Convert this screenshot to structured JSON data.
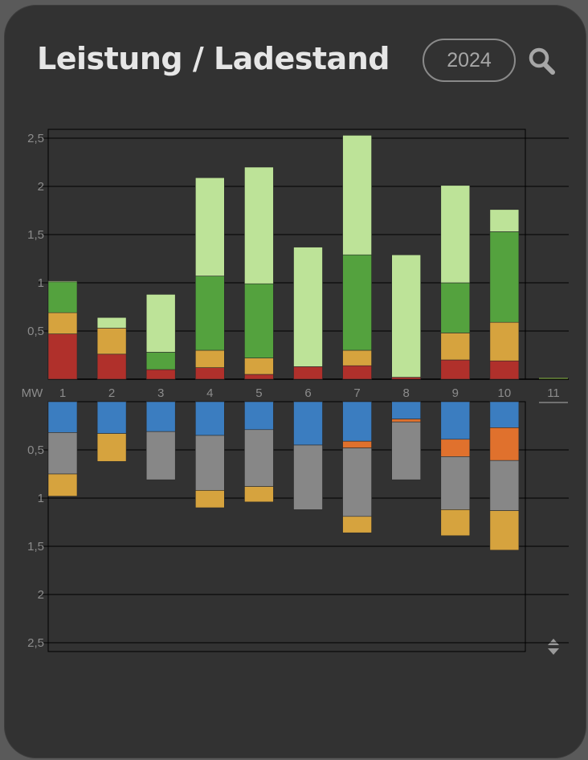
{
  "header": {
    "title": "Leistung / Ladestand",
    "year": "2024"
  },
  "icons": {
    "search": "search-icon",
    "sort": "sort-up-down-icon"
  },
  "colors": {
    "background": "#323232",
    "page_background": "#5a5a5a",
    "text": "#e6e6e6",
    "tick_text": "#8c8c8c",
    "grid": "#000000",
    "dark_red": "#b0302b",
    "yellow": "#d6a33e",
    "green": "#54a23e",
    "light_green": "#bde398",
    "blue": "#3b7dc0",
    "gray": "#878787",
    "orange": "#e0712d"
  },
  "chart_data": [
    {
      "type": "bar",
      "stacked": true,
      "unit": "MW",
      "categories": [
        "1",
        "2",
        "3",
        "4",
        "5",
        "6",
        "7",
        "8",
        "9",
        "10",
        "11"
      ],
      "yticks": [
        "2,5",
        "2",
        "1,5",
        "1",
        "0,5"
      ],
      "ylim": [
        0,
        2.5
      ],
      "grid": true,
      "series": [
        {
          "color": "#b0302b",
          "values": [
            0.47,
            0.26,
            0.1,
            0.12,
            0.05,
            0.13,
            0.14,
            0.02,
            0.2,
            0.19,
            0
          ]
        },
        {
          "color": "#d6a33e",
          "values": [
            0.22,
            0.27,
            0,
            0.18,
            0.17,
            0,
            0.16,
            0,
            0.28,
            0.4,
            0
          ]
        },
        {
          "color": "#54a23e",
          "values": [
            0.32,
            0,
            0.18,
            0.77,
            0.77,
            0,
            0.99,
            0,
            0.52,
            0.94,
            0
          ]
        },
        {
          "color": "#bde398",
          "values": [
            0.01,
            0.11,
            0.6,
            1.02,
            1.21,
            1.24,
            1.24,
            1.27,
            1.01,
            0.23,
            0
          ]
        }
      ]
    },
    {
      "type": "bar",
      "stacked": true,
      "direction": "down",
      "unit": "MW",
      "categories": [
        "1",
        "2",
        "3",
        "4",
        "5",
        "6",
        "7",
        "8",
        "9",
        "10",
        "11"
      ],
      "yticks": [
        "0,5",
        "1",
        "1,5",
        "2",
        "2,5"
      ],
      "ylim": [
        0,
        2.5
      ],
      "grid": true,
      "series": [
        {
          "color": "#3b7dc0",
          "values": [
            0.32,
            0.33,
            0.31,
            0.35,
            0.29,
            0.45,
            0.41,
            0.18,
            0.39,
            0.27,
            0
          ]
        },
        {
          "color": "#e0712d",
          "values": [
            0,
            0,
            0,
            0,
            0,
            0,
            0.07,
            0.03,
            0.18,
            0.34,
            0
          ]
        },
        {
          "color": "#878787",
          "values": [
            0.43,
            0,
            0.5,
            0.57,
            0.59,
            0.67,
            0.71,
            0.6,
            0.55,
            0.52,
            0
          ]
        },
        {
          "color": "#d6a33e",
          "values": [
            0.23,
            0.29,
            0,
            0.18,
            0.16,
            0,
            0.17,
            0,
            0.27,
            0.41,
            0
          ]
        }
      ]
    }
  ]
}
